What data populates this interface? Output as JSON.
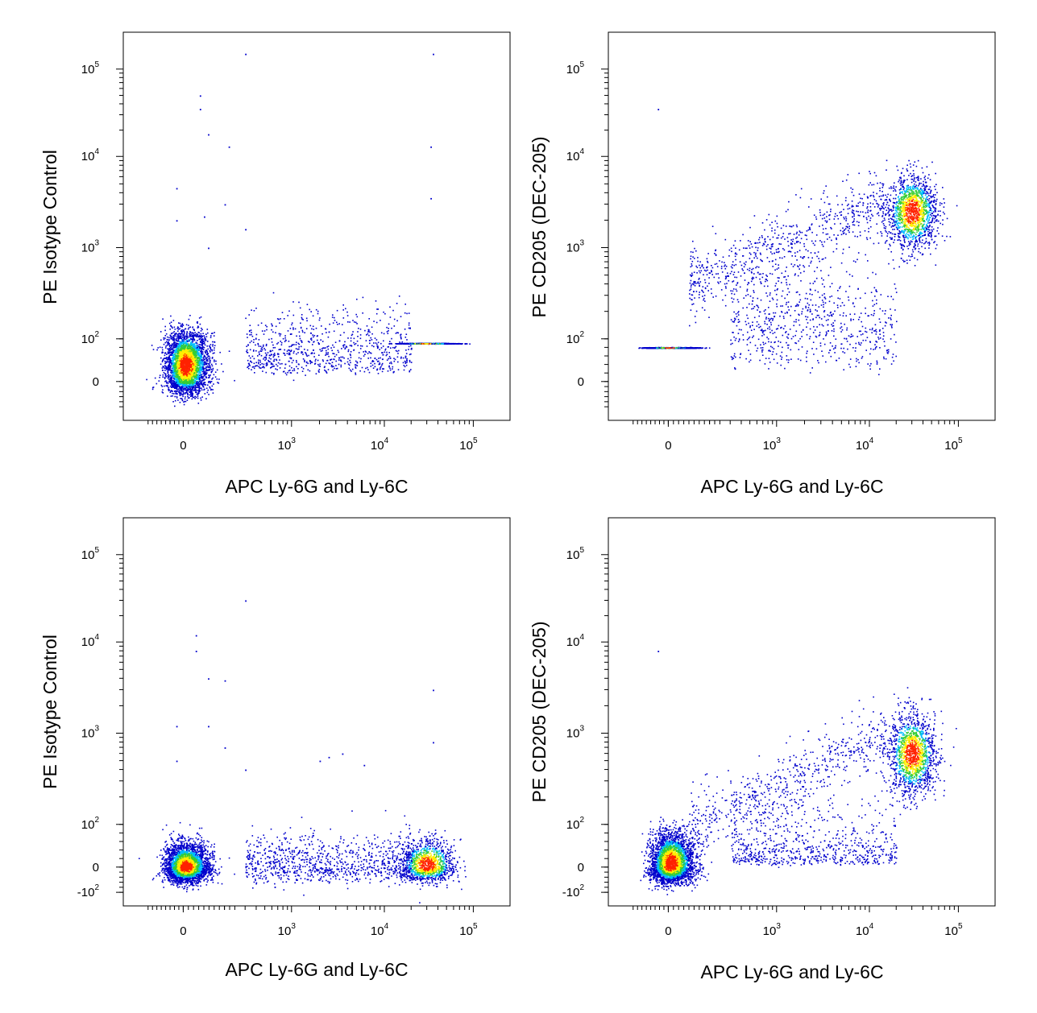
{
  "chart_data": [
    {
      "id": "top-left",
      "type": "scatter",
      "xlabel": "APC  Ly-6G and Ly-6C",
      "ylabel": "PE  Isotype Control",
      "x_ticks": [
        {
          "base": "0",
          "exp": ""
        },
        {
          "base": "10",
          "exp": "3"
        },
        {
          "base": "10",
          "exp": "4"
        },
        {
          "base": "10",
          "exp": "5"
        }
      ],
      "y_ticks": [
        {
          "base": "0",
          "exp": ""
        },
        {
          "base": "10",
          "exp": "2"
        },
        {
          "base": "10",
          "exp": "3"
        },
        {
          "base": "10",
          "exp": "4"
        },
        {
          "base": "10",
          "exp": "5"
        }
      ],
      "x_scale": "biexponential",
      "y_scale": "biexponential",
      "clusters": [
        {
          "center_x": 10,
          "center_y": 40,
          "spread_x": 55,
          "spread_y": 40,
          "n": 3500
        },
        {
          "center_x": 30000,
          "center_y": 90,
          "spread_x": 0.15,
          "spread_y": 0.25,
          "n": 1300
        },
        {
          "center_x_range": [
            300,
            20000
          ],
          "center_y": 70,
          "spread_y": 0.25,
          "n": 800
        }
      ],
      "outliers": [
        [
          300,
          150000
        ],
        [
          35000,
          150000
        ],
        [
          80,
          50000
        ],
        [
          80,
          35000
        ],
        [
          120,
          18000
        ],
        [
          220,
          13000
        ],
        [
          33000,
          13000
        ],
        [
          -40,
          4500
        ],
        [
          -40,
          2000
        ],
        [
          100,
          2200
        ],
        [
          33000,
          3500
        ],
        [
          200,
          3000
        ],
        [
          300,
          1600
        ],
        [
          120,
          1000
        ]
      ]
    },
    {
      "id": "top-right",
      "type": "scatter",
      "xlabel": "APC  Ly-6G and Ly-6C",
      "ylabel": "PE  CD205 (DEC-205)",
      "x_ticks": [
        {
          "base": "0",
          "exp": ""
        },
        {
          "base": "10",
          "exp": "3"
        },
        {
          "base": "10",
          "exp": "4"
        },
        {
          "base": "10",
          "exp": "5"
        }
      ],
      "y_ticks": [
        {
          "base": "0",
          "exp": ""
        },
        {
          "base": "10",
          "exp": "2"
        },
        {
          "base": "10",
          "exp": "3"
        },
        {
          "base": "10",
          "exp": "4"
        },
        {
          "base": "10",
          "exp": "5"
        }
      ],
      "x_scale": "biexponential",
      "y_scale": "biexponential",
      "clusters": [
        {
          "center_x": 0,
          "center_y": 80,
          "spread_x": 55,
          "spread_y": 0.35,
          "n": 3300
        },
        {
          "center_x": 30000,
          "center_y": 2500,
          "spread_x": 0.14,
          "spread_y": 0.2,
          "n": 1500
        },
        {
          "center_x_range": [
            300,
            20000
          ],
          "center_y": 150,
          "spread_y": 0.3,
          "n": 700
        },
        {
          "center_x_range": [
            100,
            15000
          ],
          "center_y_range": [
            400,
            3000
          ],
          "n": 700
        }
      ],
      "outliers": [
        [
          -60,
          35000
        ]
      ]
    },
    {
      "id": "bottom-left",
      "type": "scatter",
      "xlabel": "APC  Ly-6G and Ly-6C",
      "ylabel": "PE  Isotype Control",
      "x_ticks": [
        {
          "base": "0",
          "exp": ""
        },
        {
          "base": "10",
          "exp": "3"
        },
        {
          "base": "10",
          "exp": "4"
        },
        {
          "base": "10",
          "exp": "5"
        }
      ],
      "y_ticks": [
        {
          "base": "-10",
          "exp": "2"
        },
        {
          "base": "0",
          "exp": ""
        },
        {
          "base": "10",
          "exp": "2"
        },
        {
          "base": "10",
          "exp": "3"
        },
        {
          "base": "10",
          "exp": "4"
        },
        {
          "base": "10",
          "exp": "5"
        }
      ],
      "x_scale": "biexponential",
      "y_scale": "biexponential",
      "clusters": [
        {
          "center_x": 10,
          "center_y": 0,
          "spread_x": 55,
          "spread_y": 28,
          "n": 3500
        },
        {
          "center_x": 30000,
          "center_y": 5,
          "spread_x": 0.15,
          "spread_y": 30,
          "n": 1200
        },
        {
          "center_x_range": [
            300,
            20000
          ],
          "center_y": 10,
          "spread_y": 35,
          "n": 900
        }
      ],
      "outliers": [
        [
          300,
          30000
        ],
        [
          60,
          12000
        ],
        [
          60,
          8000
        ],
        [
          120,
          4000
        ],
        [
          200,
          3800
        ],
        [
          35000,
          3000
        ],
        [
          -40,
          1200
        ],
        [
          120,
          1200
        ],
        [
          200,
          700
        ],
        [
          -40,
          500
        ],
        [
          2000,
          500
        ],
        [
          2500,
          550
        ],
        [
          3500,
          600
        ],
        [
          300,
          400
        ],
        [
          6000,
          450
        ],
        [
          35000,
          800
        ]
      ]
    },
    {
      "id": "bottom-right",
      "type": "scatter",
      "xlabel": "APC  Ly-6G and Ly-6C",
      "ylabel": "PE  CD205 (DEC-205)",
      "x_ticks": [
        {
          "base": "0",
          "exp": ""
        },
        {
          "base": "10",
          "exp": "3"
        },
        {
          "base": "10",
          "exp": "4"
        },
        {
          "base": "10",
          "exp": "5"
        }
      ],
      "y_ticks": [
        {
          "base": "-10",
          "exp": "2"
        },
        {
          "base": "0",
          "exp": ""
        },
        {
          "base": "10",
          "exp": "2"
        },
        {
          "base": "10",
          "exp": "3"
        },
        {
          "base": "10",
          "exp": "4"
        },
        {
          "base": "10",
          "exp": "5"
        }
      ],
      "x_scale": "biexponential",
      "y_scale": "biexponential",
      "clusters": [
        {
          "center_x": 10,
          "center_y": 10,
          "spread_x": 55,
          "spread_y": 35,
          "n": 3300
        },
        {
          "center_x": 30000,
          "center_y": 600,
          "spread_x": 0.13,
          "spread_y": 0.22,
          "n": 1500
        },
        {
          "center_x_range": [
            300,
            20000
          ],
          "center_y": 40,
          "spread_y": 0.35,
          "n": 700
        },
        {
          "center_x_range": [
            100,
            15000
          ],
          "center_y_range": [
            80,
            1000
          ],
          "n": 600
        }
      ],
      "outliers": [
        [
          -60,
          8000
        ]
      ]
    }
  ],
  "colors": {
    "low": "#0000cc",
    "mid_low": "#00bfff",
    "mid": "#33cc33",
    "mid_high": "#ffee00",
    "high": "#ff2200"
  }
}
